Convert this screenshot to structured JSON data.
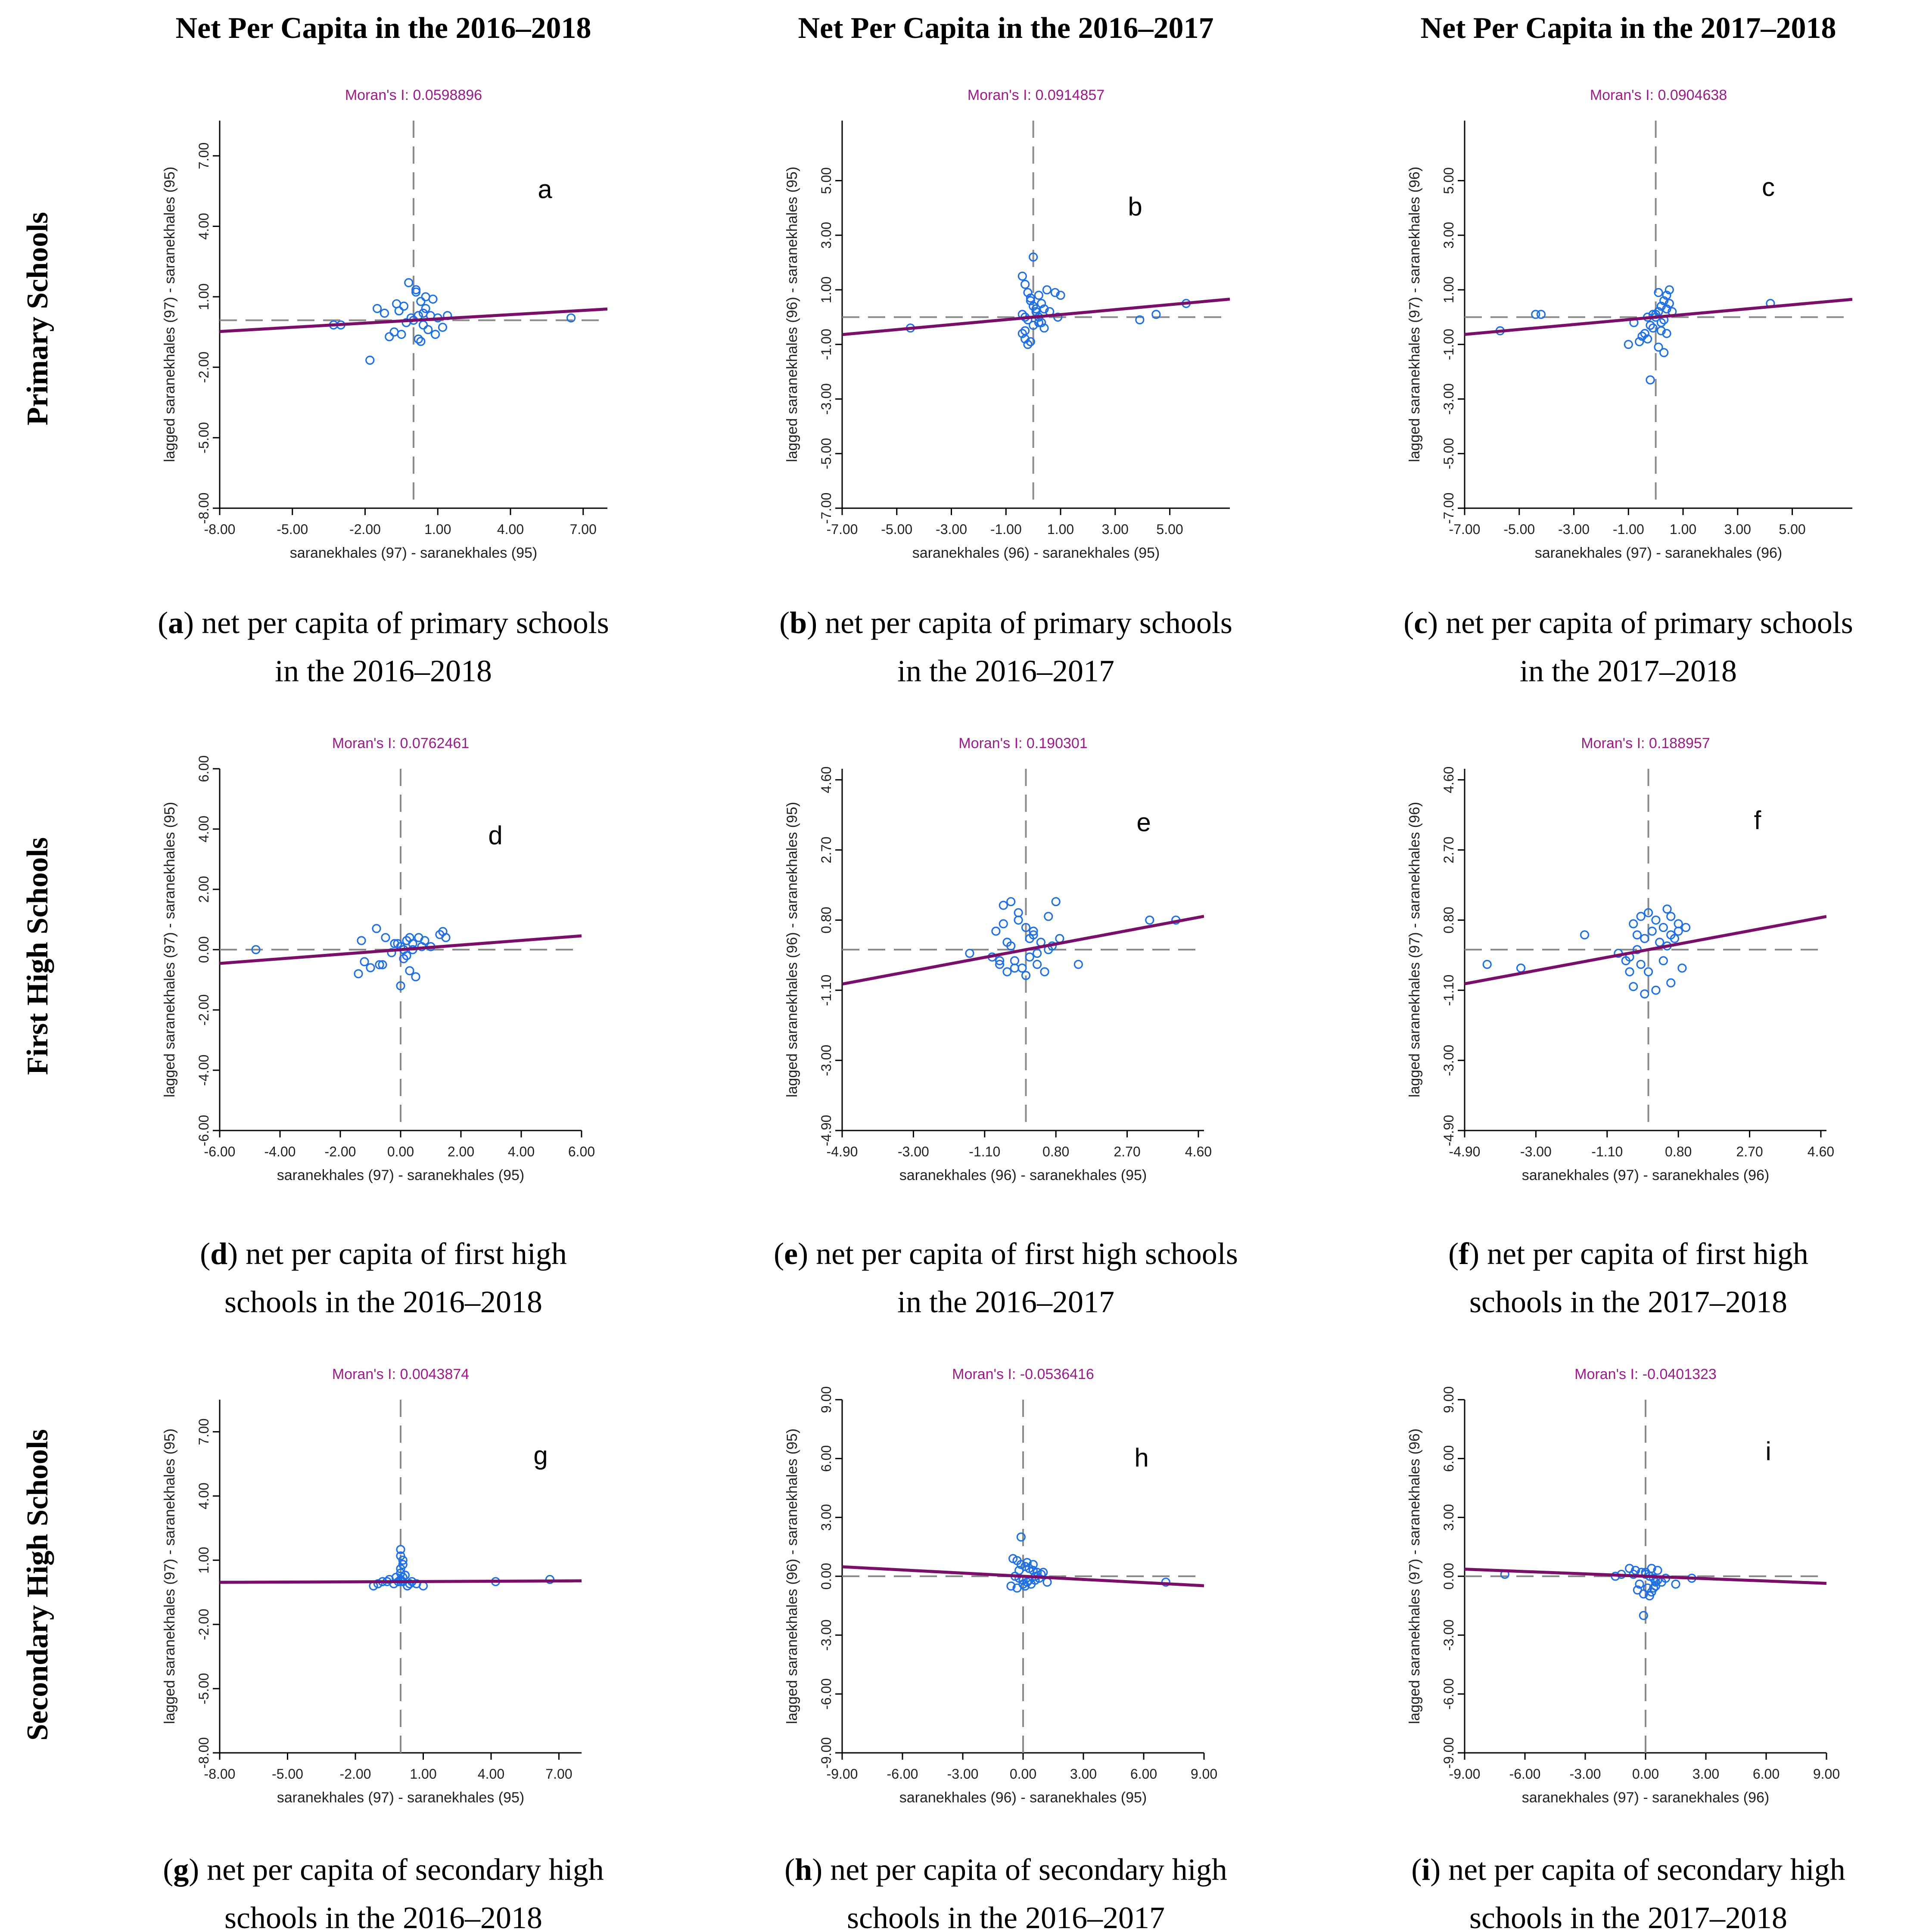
{
  "column_titles": [
    "Net Per Capita in the 2016–2018",
    "Net Per Capita in the 2016–2017",
    "Net Per Capita in the 2017–2018"
  ],
  "row_titles": [
    "Primary Schools",
    "First High Schools",
    "Secondary High Schools"
  ],
  "colors": {
    "regression_line": "#7a0f6a",
    "moran_text": "#9b1b8a",
    "points": "#1f6fe5",
    "reference_lines": "#8a8a8a"
  },
  "chart_data": [
    {
      "type": "scatter",
      "panel": "a",
      "title": "Moran's I: 0.0598896",
      "xlabel": "saranekhales (97) - saranekhales (95)",
      "ylabel": "lagged saranekhales (97) - saranekhales (95)",
      "xlim": [
        -8,
        8
      ],
      "ylim": [
        -8,
        8.5
      ],
      "xticks": [
        -8,
        -5,
        -2,
        1,
        4,
        7
      ],
      "xtick_labels": [
        "-8.00",
        "-5.00",
        "-2.00",
        "1.00",
        "4.00",
        "7.00"
      ],
      "yticks": [
        -8,
        -5,
        -2,
        1,
        4,
        7
      ],
      "ytick_labels": [
        "-8.00",
        "-5.00",
        "-2.00",
        "1.00",
        "4.00",
        "7.00"
      ],
      "mean_x": 0,
      "mean_y": 0,
      "slope": 0.0598896,
      "x": [
        -0.2,
        0.1,
        0.3,
        -0.4,
        0.5,
        0.8,
        -0.6,
        0.2,
        -0.1,
        0.4,
        0.6,
        0.9,
        1.2,
        -0.8,
        -1.0,
        -1.2,
        -1.5,
        -0.3,
        0.0,
        0.7,
        1.0,
        0.2,
        -0.5,
        0.3,
        0.5,
        -1.8,
        -3.0,
        -3.3,
        6.5,
        0.1,
        -0.7,
        0.4,
        1.4
      ],
      "y": [
        1.6,
        1.2,
        0.8,
        0.6,
        1.0,
        0.9,
        0.4,
        0.2,
        0.1,
        -0.2,
        -0.4,
        -0.6,
        -0.3,
        -0.5,
        -0.7,
        0.3,
        0.5,
        -0.1,
        0.0,
        0.2,
        0.1,
        -0.8,
        -0.6,
        -0.9,
        0.5,
        -1.7,
        -0.2,
        -0.2,
        0.1,
        1.3,
        0.7,
        0.3,
        0.2
      ]
    },
    {
      "type": "scatter",
      "panel": "b",
      "title": "Moran's I: 0.0914857",
      "xlabel": "saranekhales (96) - saranekhales (95)",
      "ylabel": "lagged saranekhales (96) - saranekhales (95)",
      "xlim": [
        -7,
        7.2
      ],
      "ylim": [
        -7,
        7.2
      ],
      "xticks": [
        -7,
        -5,
        -3,
        -1,
        1,
        3,
        5
      ],
      "xtick_labels": [
        "-7.00",
        "-5.00",
        "-3.00",
        "-1.00",
        "1.00",
        "3.00",
        "5.00"
      ],
      "yticks": [
        -7,
        -5,
        -3,
        -1,
        1,
        3,
        5
      ],
      "ytick_labels": [
        "-7.00",
        "-5.00",
        "-3.00",
        "-1.00",
        "1.00",
        "3.00",
        "5.00"
      ],
      "mean_x": 0,
      "mean_y": 0,
      "slope": 0.0914857,
      "x": [
        -0.4,
        -0.3,
        -0.2,
        -0.1,
        0.0,
        0.1,
        0.2,
        0.3,
        0.4,
        -0.4,
        -0.3,
        -0.2,
        -0.1,
        0.1,
        0.2,
        0.5,
        0.8,
        1.0,
        -0.4,
        -0.3,
        0.0,
        0.3,
        0.0,
        -0.2,
        0.6,
        0.9,
        -4.5,
        3.9,
        4.5,
        5.6,
        -0.3,
        -0.1,
        0.2,
        0.4
      ],
      "y": [
        1.5,
        1.2,
        0.9,
        0.6,
        0.4,
        0.2,
        0.0,
        -0.2,
        -0.4,
        -0.6,
        -0.8,
        -1.0,
        -0.9,
        0.3,
        0.8,
        1.0,
        0.9,
        0.8,
        0.1,
        0.0,
        2.2,
        0.5,
        -0.3,
        -0.1,
        0.2,
        0.0,
        -0.4,
        -0.1,
        0.1,
        0.5,
        -0.5,
        0.7,
        -0.2,
        0.3
      ]
    },
    {
      "type": "scatter",
      "panel": "c",
      "title": "Moran's I: 0.0904638",
      "xlabel": "saranekhales (97) - saranekhales (96)",
      "ylabel": "lagged saranekhales (97) - saranekhales (96)",
      "xlim": [
        -7,
        7.2
      ],
      "ylim": [
        -7,
        7.2
      ],
      "xticks": [
        -7,
        -5,
        -3,
        -1,
        1,
        3,
        5
      ],
      "xtick_labels": [
        "-7.00",
        "-5.00",
        "-3.00",
        "-1.00",
        "1.00",
        "3.00",
        "5.00"
      ],
      "yticks": [
        -7,
        -5,
        -3,
        -1,
        1,
        3,
        5
      ],
      "ytick_labels": [
        "-7.00",
        "-5.00",
        "-3.00",
        "-1.00",
        "1.00",
        "3.00",
        "5.00"
      ],
      "mean_x": 0,
      "mean_y": 0,
      "slope": 0.0904638,
      "x": [
        0.0,
        0.1,
        0.2,
        0.3,
        0.4,
        0.5,
        -0.2,
        -0.4,
        -0.6,
        0.1,
        0.3,
        0.2,
        0.0,
        -0.1,
        -0.3,
        0.4,
        0.5,
        -0.8,
        -1.0,
        -0.5,
        0.2,
        -0.1,
        0.3,
        -0.2,
        -5.7,
        -4.4,
        -4.2,
        4.2,
        0.6,
        0.1,
        -0.3,
        0.4
      ],
      "y": [
        0.0,
        0.2,
        0.4,
        0.6,
        0.8,
        1.0,
        -0.3,
        -0.6,
        -0.9,
        -1.1,
        -1.3,
        -0.2,
        0.1,
        -0.4,
        -0.8,
        0.3,
        0.5,
        -0.2,
        -1.0,
        -0.7,
        -0.5,
        0.1,
        -0.1,
        -2.3,
        -0.5,
        0.1,
        0.1,
        0.5,
        0.2,
        0.9,
        0.0,
        -0.6
      ]
    },
    {
      "type": "scatter",
      "panel": "d",
      "title": "Moran's I: 0.0762461",
      "xlabel": "saranekhales (97) - saranekhales (95)",
      "ylabel": "lagged saranekhales (97) - saranekhales (95)",
      "xlim": [
        -6,
        6
      ],
      "ylim": [
        -6,
        6
      ],
      "xticks": [
        -6,
        -4,
        -2,
        0,
        2,
        4,
        6
      ],
      "xtick_labels": [
        "-6.00",
        "-4.00",
        "-2.00",
        "0.00",
        "2.00",
        "4.00",
        "6.00"
      ],
      "yticks": [
        -6,
        -4,
        -2,
        0,
        2,
        4,
        6
      ],
      "ytick_labels": [
        "-6.00",
        "-4.00",
        "-2.00",
        "0.00",
        "2.00",
        "4.00",
        "6.00"
      ],
      "mean_x": 0,
      "mean_y": 0,
      "slope": 0.0762461,
      "x": [
        -0.8,
        -0.5,
        -0.2,
        0.0,
        0.2,
        0.4,
        0.6,
        0.8,
        1.0,
        1.3,
        1.5,
        -1.2,
        -1.0,
        -0.6,
        0.1,
        0.3,
        0.5,
        -0.3,
        0.2,
        0.4,
        -0.1,
        0.0,
        -4.8,
        -1.4,
        -1.3,
        0.3,
        0.7,
        -0.7,
        1.4,
        0.1
      ],
      "y": [
        0.7,
        0.4,
        0.2,
        0.1,
        0.3,
        0.2,
        0.4,
        0.3,
        0.1,
        0.5,
        0.4,
        -0.4,
        -0.6,
        -0.5,
        -0.3,
        -0.7,
        -0.9,
        -0.1,
        -0.2,
        0.0,
        0.2,
        -1.2,
        0.0,
        -0.8,
        0.3,
        0.4,
        0.1,
        -0.5,
        0.6,
        0.0
      ]
    },
    {
      "type": "scatter",
      "panel": "e",
      "title": "Moran's I: 0.190301",
      "xlabel": "saranekhales (96) - saranekhales (95)",
      "ylabel": "lagged saranekhales (96) - saranekhales (95)",
      "xlim": [
        -4.9,
        4.75
      ],
      "ylim": [
        -4.9,
        4.9
      ],
      "xticks": [
        -4.9,
        -3.0,
        -1.1,
        0.8,
        2.7,
        4.6
      ],
      "xtick_labels": [
        "-4.90",
        "-3.00",
        "-1.10",
        "0.80",
        "2.70",
        "4.60"
      ],
      "yticks": [
        -4.9,
        -3.0,
        -1.1,
        0.8,
        2.7,
        4.6
      ],
      "ytick_labels": [
        "-4.90",
        "-3.00",
        "-1.10",
        "0.80",
        "2.70",
        "4.60"
      ],
      "mean_x": 0,
      "mean_y": 0,
      "slope": 0.190301,
      "x": [
        -0.8,
        -0.6,
        -0.4,
        -0.2,
        0.0,
        0.2,
        0.4,
        0.6,
        -0.9,
        -0.7,
        -0.5,
        -0.3,
        -0.1,
        0.1,
        0.3,
        0.5,
        0.7,
        0.9,
        -0.6,
        -0.4,
        0.0,
        0.2,
        -0.2,
        0.6,
        1.4,
        3.3,
        4.0,
        -1.5,
        -0.5,
        0.3,
        0.8,
        -0.3,
        0.1,
        -0.7
      ],
      "y": [
        0.5,
        1.2,
        1.3,
        0.8,
        0.6,
        0.4,
        0.2,
        0.0,
        -0.2,
        -0.4,
        -0.6,
        -0.3,
        -0.5,
        -0.2,
        -0.4,
        -0.6,
        0.1,
        0.3,
        0.7,
        0.1,
        -0.7,
        0.5,
        1.0,
        0.9,
        -0.4,
        0.8,
        0.8,
        -0.1,
        0.2,
        -0.1,
        1.3,
        -0.5,
        0.3,
        -0.3
      ]
    },
    {
      "type": "scatter",
      "panel": "f",
      "title": "Moran's I: 0.188957",
      "xlabel": "saranekhales (97) - saranekhales (96)",
      "ylabel": "lagged saranekhales (97) - saranekhales (96)",
      "xlim": [
        -4.9,
        4.75
      ],
      "ylim": [
        -4.9,
        4.9
      ],
      "xticks": [
        -4.9,
        -3.0,
        -1.1,
        0.8,
        2.7,
        4.6
      ],
      "xtick_labels": [
        "-4.90",
        "-3.00",
        "-1.10",
        "0.80",
        "2.70",
        "4.60"
      ],
      "yticks": [
        -4.9,
        -3.0,
        -1.1,
        0.8,
        2.7,
        4.6
      ],
      "ytick_labels": [
        "-4.90",
        "-3.00",
        "-1.10",
        "0.80",
        "2.70",
        "4.60"
      ],
      "mean_x": 0,
      "mean_y": 0,
      "slope": 0.188957,
      "x": [
        -0.4,
        -0.2,
        0.0,
        0.2,
        0.4,
        0.6,
        0.8,
        1.0,
        -0.3,
        -0.1,
        0.1,
        0.3,
        0.5,
        0.7,
        -0.5,
        -0.2,
        0.0,
        0.6,
        0.9,
        -0.6,
        -0.4,
        -0.1,
        0.4,
        0.6,
        -4.3,
        -3.4,
        -1.7,
        -0.8,
        -0.5,
        0.2,
        -0.3,
        0.5,
        0.8
      ],
      "y": [
        0.7,
        0.9,
        1.0,
        0.8,
        0.6,
        0.9,
        0.7,
        0.6,
        0.4,
        0.3,
        0.5,
        0.2,
        0.1,
        0.3,
        -0.2,
        -0.4,
        -0.6,
        -0.9,
        -0.5,
        -0.3,
        -1.0,
        -1.2,
        -0.3,
        0.4,
        -0.4,
        -0.5,
        0.4,
        -0.1,
        -0.6,
        -1.1,
        0.0,
        1.1,
        0.5
      ]
    },
    {
      "type": "scatter",
      "panel": "g",
      "title": "Moran's I: 0.0043874",
      "xlabel": "saranekhales (97) - saranekhales (95)",
      "ylabel": "lagged saranekhales (97) - saranekhales (95)",
      "xlim": [
        -8,
        8
      ],
      "ylim": [
        -8,
        8.5
      ],
      "xticks": [
        -8,
        -5,
        -2,
        1,
        4,
        7
      ],
      "xtick_labels": [
        "-8.00",
        "-5.00",
        "-2.00",
        "1.00",
        "4.00",
        "7.00"
      ],
      "yticks": [
        -8,
        -5,
        -2,
        1,
        4,
        7
      ],
      "ytick_labels": [
        "-8.00",
        "-5.00",
        "-2.00",
        "1.00",
        "4.00",
        "7.00"
      ],
      "mean_x": 0,
      "mean_y": 0,
      "slope": 0.0043874,
      "x": [
        0.0,
        0.0,
        0.1,
        0.1,
        0.0,
        0.0,
        0.1,
        0.0,
        0.0,
        0.1,
        -0.1,
        -0.3,
        -0.5,
        -0.8,
        -1.0,
        -1.2,
        0.3,
        0.5,
        0.7,
        1.0,
        0.2,
        -0.2,
        4.2,
        6.6,
        -0.6,
        0.4
      ],
      "y": [
        1.5,
        1.2,
        1.0,
        0.8,
        0.6,
        0.4,
        0.2,
        0.1,
        0.0,
        0.0,
        0.0,
        -0.1,
        0.1,
        0.0,
        -0.1,
        -0.2,
        -0.2,
        0.0,
        -0.1,
        -0.2,
        0.3,
        0.2,
        0.0,
        0.1,
        0.0,
        -0.1
      ]
    },
    {
      "type": "scatter",
      "panel": "h",
      "title": "Moran's I: -0.0536416",
      "xlabel": "saranekhales (96) - saranekhales (95)",
      "ylabel": "lagged saranekhales (96) - saranekhales (95)",
      "xlim": [
        -9,
        9
      ],
      "ylim": [
        -9,
        9
      ],
      "xticks": [
        -9,
        -6,
        -3,
        0,
        3,
        6,
        9
      ],
      "xtick_labels": [
        "-9.00",
        "-6.00",
        "-3.00",
        "0.00",
        "3.00",
        "6.00",
        "9.00"
      ],
      "yticks": [
        -9,
        -6,
        -3,
        0,
        3,
        6,
        9
      ],
      "ytick_labels": [
        "-9.00",
        "-6.00",
        "-3.00",
        "0.00",
        "3.00",
        "6.00",
        "9.00"
      ],
      "mean_x": 0,
      "mean_y": 0,
      "slope": -0.0536416,
      "x": [
        -0.5,
        -0.3,
        -0.1,
        0.1,
        0.3,
        0.5,
        0.7,
        0.9,
        -0.4,
        -0.2,
        0.0,
        0.2,
        0.4,
        0.6,
        0.8,
        1.2,
        -0.6,
        -0.3,
        0.0,
        0.3,
        0.6,
        1.0,
        0.2,
        -0.1,
        7.1,
        -0.2,
        0.5,
        0.1
      ],
      "y": [
        0.9,
        0.8,
        0.6,
        0.5,
        0.4,
        0.3,
        0.2,
        0.1,
        0.0,
        -0.1,
        -0.2,
        -0.3,
        -0.4,
        -0.2,
        -0.1,
        -0.3,
        -0.5,
        -0.6,
        -0.4,
        -0.2,
        0.0,
        0.2,
        0.7,
        2.0,
        -0.3,
        0.3,
        0.6,
        -0.5
      ]
    },
    {
      "type": "scatter",
      "panel": "i",
      "title": "Moran's I: -0.0401323",
      "xlabel": "saranekhales (97) - saranekhales (96)",
      "ylabel": "lagged saranekhales (97) - saranekhales (96)",
      "xlim": [
        -9,
        9
      ],
      "ylim": [
        -9,
        9
      ],
      "xticks": [
        -9,
        -6,
        -3,
        0,
        3,
        6,
        9
      ],
      "xtick_labels": [
        "-9.00",
        "-6.00",
        "-3.00",
        "0.00",
        "3.00",
        "6.00",
        "9.00"
      ],
      "yticks": [
        -9,
        -6,
        -3,
        0,
        3,
        6,
        9
      ],
      "ytick_labels": [
        "-9.00",
        "-6.00",
        "-3.00",
        "0.00",
        "3.00",
        "6.00",
        "9.00"
      ],
      "mean_x": 0,
      "mean_y": 0,
      "slope": -0.0401323,
      "x": [
        -0.8,
        -0.5,
        -0.2,
        0.0,
        0.2,
        0.4,
        0.6,
        0.8,
        1.0,
        -0.6,
        -0.3,
        0.1,
        0.3,
        0.5,
        -0.4,
        -0.1,
        0.2,
        0.4,
        0.6,
        -1.5,
        -1.2,
        1.5,
        -0.1,
        0.3,
        -7.0,
        2.3,
        0.0,
        0.5
      ],
      "y": [
        0.4,
        0.3,
        0.2,
        0.1,
        0.0,
        -0.1,
        -0.2,
        -0.3,
        -0.1,
        0.1,
        -0.4,
        -0.6,
        -0.8,
        -0.5,
        -0.7,
        -0.9,
        -1.0,
        -0.6,
        0.3,
        0.0,
        0.1,
        -0.4,
        -2.0,
        0.4,
        0.1,
        -0.1,
        0.2,
        -0.3
      ]
    }
  ],
  "panel_letters": [
    "a",
    "b",
    "c",
    "d",
    "e",
    "f",
    "g",
    "h",
    "i"
  ],
  "captions": [
    {
      "letter": "a",
      "line1": "net per capita of primary schools",
      "line2": "in the 2016–2018"
    },
    {
      "letter": "b",
      "line1": "net per capita of primary schools",
      "line2": "in the 2016–2017"
    },
    {
      "letter": "c",
      "line1": "net per capita of primary schools",
      "line2": "in the 2017–2018"
    },
    {
      "letter": "d",
      "line1": "net per capita of first high",
      "line2": "schools in the 2016–2018"
    },
    {
      "letter": "e",
      "line1": "net per capita of first high schools",
      "line2": "in the 2016–2017"
    },
    {
      "letter": "f",
      "line1": "net per capita of first high",
      "line2": "schools in the 2017–2018"
    },
    {
      "letter": "g",
      "line1": "net per capita of secondary high",
      "line2": "schools in the 2016–2018"
    },
    {
      "letter": "h",
      "line1": "net per capita of secondary high",
      "line2": "schools in the 2016–2017"
    },
    {
      "letter": "i",
      "line1": "net per capita of secondary high",
      "line2": "schools in the 2017–2018"
    }
  ]
}
